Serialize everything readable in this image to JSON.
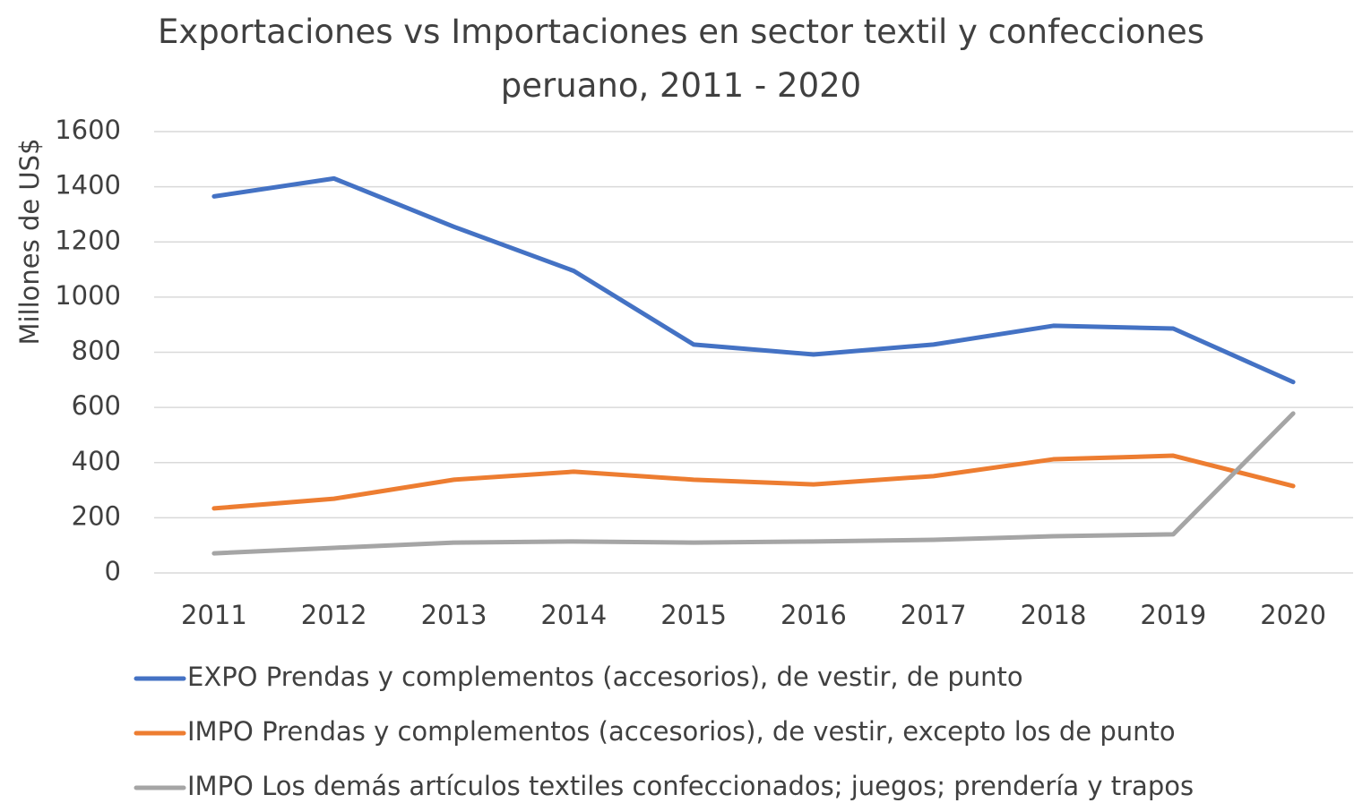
{
  "chart_data": {
    "type": "line",
    "title": "Exportaciones vs Importaciones en sector textil y confecciones peruano, 2011 - 2020",
    "y_label": "Millones de US$",
    "categories": [
      "2011",
      "2012",
      "2013",
      "2014",
      "2015",
      "2016",
      "2017",
      "2018",
      "2019",
      "2020"
    ],
    "series": [
      {
        "name": "EXPO Prendas y complementos (accesorios), de vestir, de punto",
        "color": "#4472c4",
        "values": [
          1365,
          1430,
          1255,
          1095,
          828,
          792,
          828,
          896,
          886,
          692
        ]
      },
      {
        "name": "IMPO Prendas y complementos (accesorios), de vestir, excepto los de punto",
        "color": "#ed7d31",
        "values": [
          234,
          269,
          338,
          367,
          338,
          321,
          351,
          412,
          425,
          315
        ]
      },
      {
        "name": "IMPO Los demás artículos textiles confeccionados; juegos; prendería y trapos",
        "color": "#a5a5a5",
        "values": [
          71,
          91,
          110,
          114,
          110,
          114,
          120,
          133,
          140,
          578
        ]
      }
    ],
    "ylim": [
      0,
      1600
    ],
    "yticks": [
      0,
      200,
      400,
      600,
      800,
      1000,
      1200,
      1400,
      1600
    ],
    "grid": true,
    "legend": "bottom"
  }
}
